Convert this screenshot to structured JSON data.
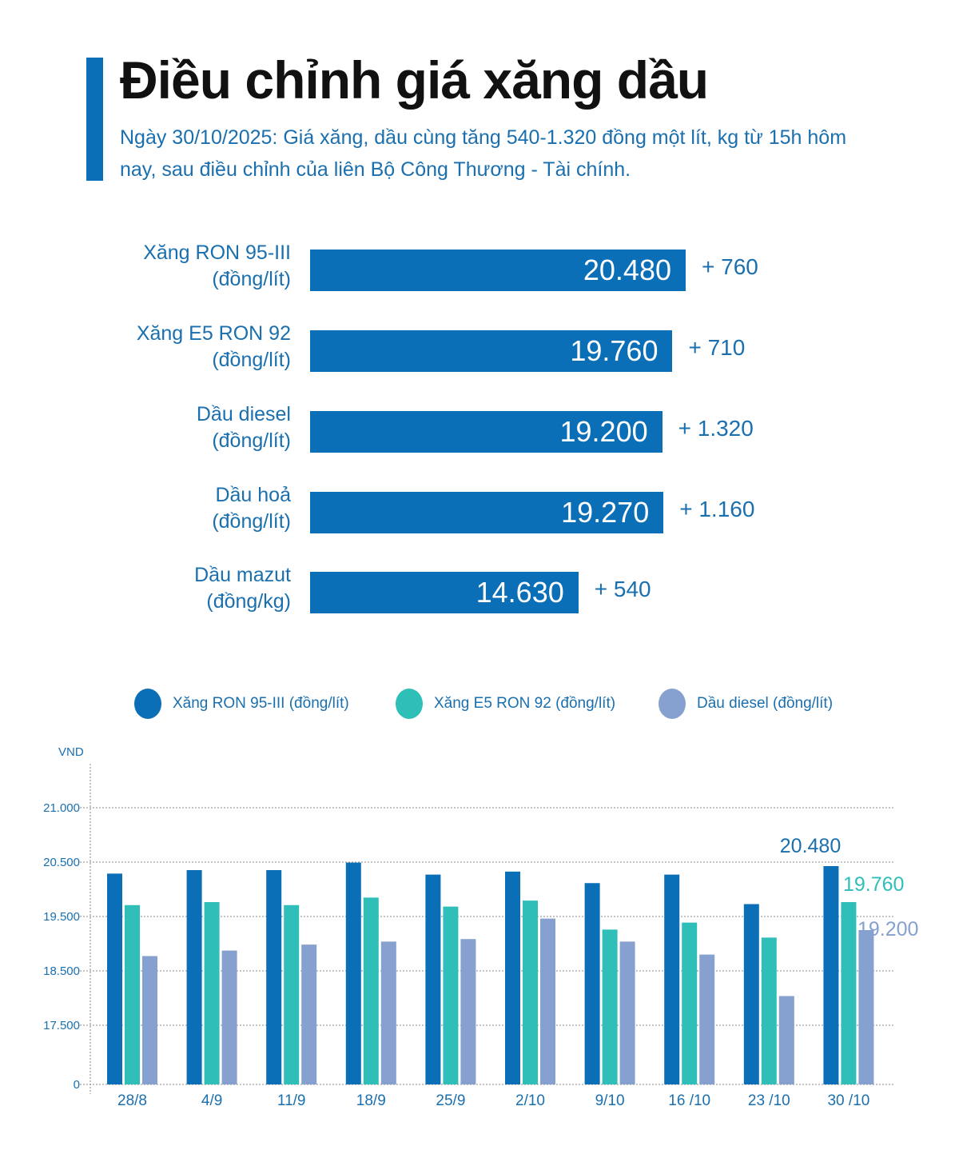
{
  "header": {
    "title": "Điều chỉnh giá xăng dầu",
    "subtitle": "Ngày 30/10/2025: Giá xăng, dầu cùng tăng 540-1.320 đồng một lít, kg từ 15h hôm nay, sau điều chỉnh của liên Bộ Công Thương - Tài chính."
  },
  "colors": {
    "accent": "#0b6fb8",
    "ron95": "#0b6fb8",
    "e5": "#2fbfb8",
    "diesel": "#86a0cf",
    "text": "#1a6fae"
  },
  "price_list": [
    {
      "name": "Xăng RON 95-III",
      "unit": "(đồng/lít)",
      "price": 20480,
      "price_label": "20.480",
      "change": "+ 760"
    },
    {
      "name": "Xăng E5 RON 92",
      "unit": "(đồng/lít)",
      "price": 19760,
      "price_label": "19.760",
      "change": "+ 710"
    },
    {
      "name": "Dầu diesel",
      "unit": "(đồng/lít)",
      "price": 19200,
      "price_label": "19.200",
      "change": "+ 1.320"
    },
    {
      "name": "Dầu hoả",
      "unit": "(đồng/lít)",
      "price": 19270,
      "price_label": "19.270",
      "change": "+ 1.160"
    },
    {
      "name": "Dầu mazut",
      "unit": "(đồng/kg)",
      "price": 14630,
      "price_label": "14.630",
      "change": "+ 540"
    }
  ],
  "chart_data": {
    "type": "bar",
    "title": "",
    "xlabel": "",
    "ylabel": "VND",
    "yticks": [
      "21.000",
      "20.500",
      "19.500",
      "18.500",
      "17.500",
      "0"
    ],
    "ytick_values": [
      21000,
      20500,
      19500,
      18500,
      17500,
      0
    ],
    "grid": true,
    "legend_position": "top",
    "categories": [
      "28/8",
      "4/9",
      "11/9",
      "18/9",
      "25/9",
      "2/10",
      "9/10",
      "16 /10",
      "23 /10",
      "30 /10"
    ],
    "series": [
      {
        "name": "Xăng RON 95-III (đồng/lít)",
        "color": "#0b6fb8",
        "values": [
          20330,
          20400,
          20400,
          20550,
          20310,
          20370,
          20140,
          20310,
          19720,
          20480
        ]
      },
      {
        "name": "Xăng E5 RON 92 (đồng/lít)",
        "color": "#2fbfb8",
        "values": [
          19700,
          19760,
          19700,
          19850,
          19670,
          19790,
          19210,
          19350,
          19050,
          19760
        ]
      },
      {
        "name": "Dầu diesel (đồng/lít)",
        "color": "#86a0cf",
        "values": [
          18680,
          18790,
          18910,
          18970,
          19020,
          19430,
          18970,
          18710,
          17880,
          19200
        ]
      }
    ],
    "annotations": [
      {
        "series": 0,
        "category": "30 /10",
        "text": "20.480"
      },
      {
        "series": 1,
        "category": "30 /10",
        "text": "19.760"
      },
      {
        "series": 2,
        "category": "30 /10",
        "text": "19.200"
      }
    ]
  }
}
